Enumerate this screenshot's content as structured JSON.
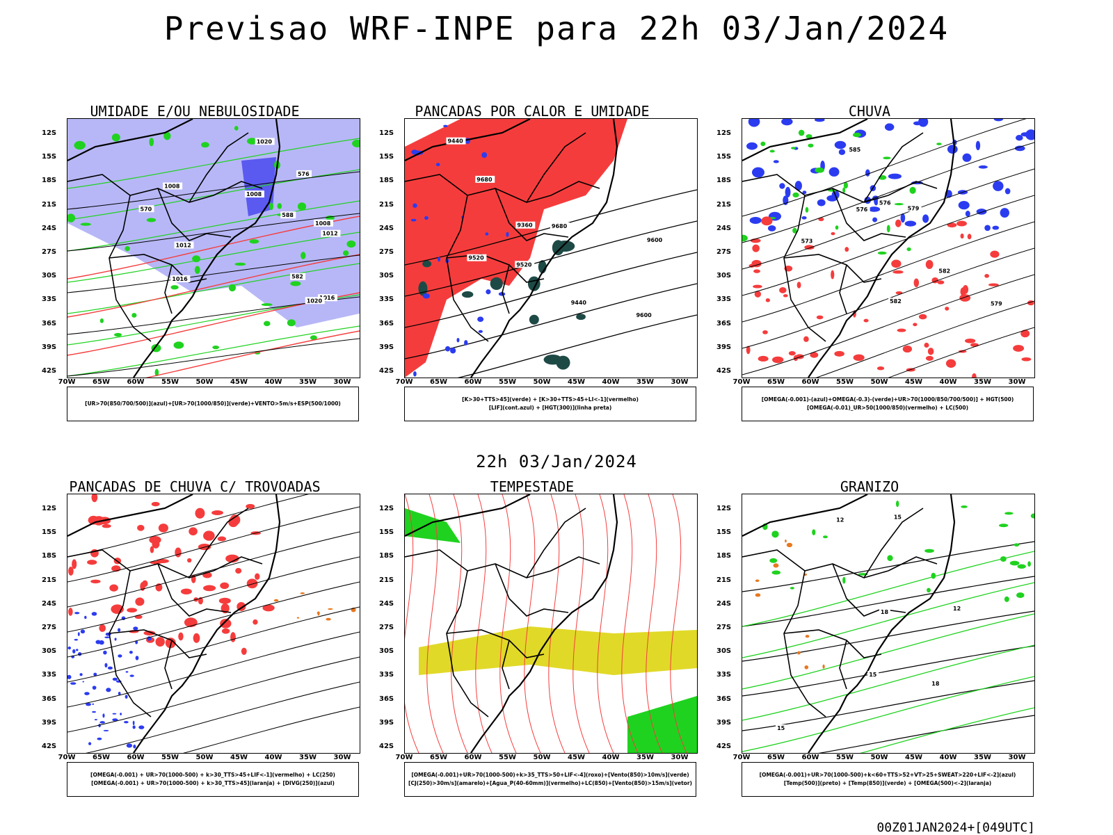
{
  "header": {
    "title": "Previsao WRF-INPE  para 22h 03/Jan/2024",
    "mid_title": "22h 03/Jan/2024",
    "stamp": "00Z01JAN2024+[049UTC]"
  },
  "axes": {
    "lat_labels": [
      "12S",
      "15S",
      "18S",
      "21S",
      "24S",
      "27S",
      "30S",
      "33S",
      "36S",
      "39S",
      "42S"
    ],
    "lon_labels": [
      "70W",
      "65W",
      "60W",
      "55W",
      "50W",
      "45W",
      "40W",
      "35W",
      "30W"
    ]
  },
  "colors": {
    "red": "#f53c3c",
    "green": "#1fd21f",
    "blue": "#2b3cf0",
    "lavender": "#a5a5f5",
    "dark_teal": "#1e4a46",
    "yellow": "#e1d928",
    "orange": "#e8781e",
    "contour_black": "#000000"
  },
  "panels": [
    {
      "title": "UMIDADE E/OU NEBULOSIDADE",
      "legend": [
        "[UR>70(850/700/500)](azul)+[UR>70(1000/850)](verde)+VENTO>5m/s+ESP(500/1000)"
      ],
      "contour_labels": [
        "1008",
        "1008",
        "1008",
        "1012",
        "1012",
        "1016",
        "1016",
        "1020",
        "1020",
        "576",
        "570",
        "582",
        "588"
      ]
    },
    {
      "title": "PANCADAS POR CALOR E UMIDADE",
      "legend": [
        "[K>30+TTS>45](verde) + [K>30+TTS>45+LI<-1](vermelho)",
        "[LIF](cont.azul) + [HGT(300)](linha preta)"
      ],
      "contour_labels": [
        "9680",
        "9600",
        "9520",
        "9440",
        "9360",
        "9600",
        "9680",
        "9520",
        "9440"
      ]
    },
    {
      "title": "CHUVA",
      "legend": [
        "[OMEGA(-0.001)-(azul)+OMEGA(-0.3)-(verde)+UR>70(1000/850/700/500)] + HGT(500)",
        "[OMEGA(-0.01)_UR>50(1000/850)(vermelho) + LC(500)"
      ],
      "contour_labels": [
        "585",
        "582",
        "579",
        "576",
        "573",
        "582",
        "579",
        "576"
      ]
    },
    {
      "title": "PANCADAS DE CHUVA C/ TROVOADAS",
      "legend": [
        "[OMEGA(-0.001) + UR>70(1000-500) + k>30_TTS>45+LIF<-1](vermelho) + LC(250)",
        "[OMEGA(-0.001) + UR>70(1000-500) + k>30_TTS>45](laranja) + [DIVG(250)](azul)"
      ],
      "contour_labels": []
    },
    {
      "title": "TEMPESTADE",
      "legend": [
        "[OMEGA(-0.001)+UR>70(1000-500)+k>35_TTS>50+LIF<-4](roxo)+[Vento(850)>10m/s](verde)",
        "[CJ(250)>30m/s](amarelo)+[Agua_P(40-60mm)](vermelho)+LC(850)+[Vento(850)>15m/s](vetor)"
      ],
      "contour_labels": []
    },
    {
      "title": "GRANIZO",
      "legend": [
        "[OMEGA(-0.001)+UR>70(1000-500)+k<60+TTS>52+VT>25+SWEAT>220+LIF<-2](azul)",
        "[Temp(500)](preto) + [Temp(850)](verde) + [OMEGA(500)<-2](laranja)"
      ],
      "contour_labels": [
        "15",
        "12",
        "18",
        "15",
        "12",
        "18",
        "15"
      ]
    }
  ]
}
